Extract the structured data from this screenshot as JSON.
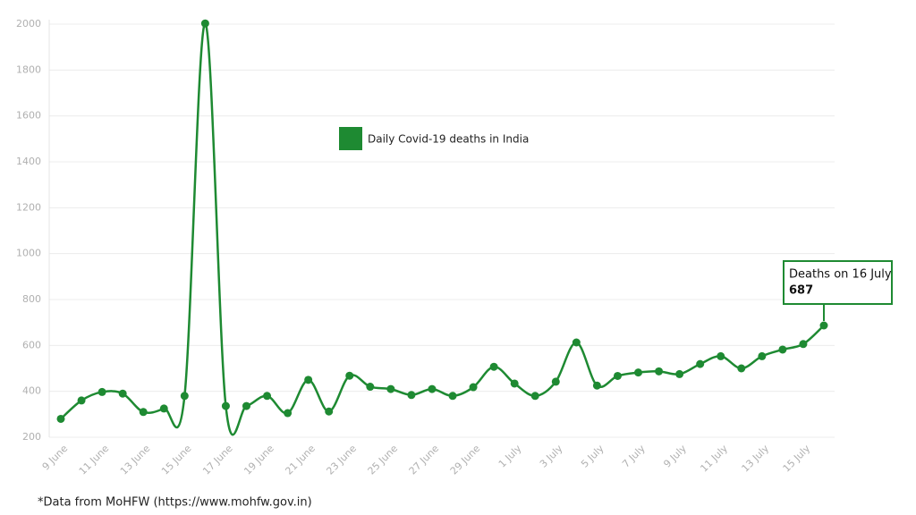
{
  "chart_data": {
    "type": "line",
    "categories": [
      "9 June",
      null,
      "11 June",
      null,
      "13 June",
      null,
      "15 June",
      null,
      "17 June",
      null,
      "19 June",
      null,
      "21 June",
      null,
      "23 June",
      null,
      "25 June",
      null,
      "27 June",
      null,
      "29 June",
      null,
      "1 July",
      null,
      "3 July",
      null,
      "5 July",
      null,
      "7 July",
      null,
      "9 July",
      null,
      "11 July",
      null,
      "13 July",
      null,
      "15 July",
      null
    ],
    "series": [
      {
        "name": "Daily Covid-19 deaths in India",
        "color": "#1e8a32",
        "values": [
          280,
          360,
          397,
          390,
          310,
          325,
          380,
          2003,
          336,
          336,
          380,
          305,
          450,
          312,
          468,
          420,
          410,
          384,
          410,
          380,
          418,
          507,
          434,
          380,
          442,
          613,
          425,
          467,
          482,
          487,
          475,
          519,
          553,
          500,
          553,
          582,
          606,
          687
        ]
      }
    ],
    "ylim": [
      200,
      2000
    ],
    "yticks": [
      200,
      400,
      600,
      800,
      1000,
      1200,
      1400,
      1600,
      1800,
      2000
    ],
    "grid": true,
    "annotation": "Deaths on 16 July",
    "footnote": "*Data from MoHFW (https://www.mohfw.gov.in)"
  }
}
